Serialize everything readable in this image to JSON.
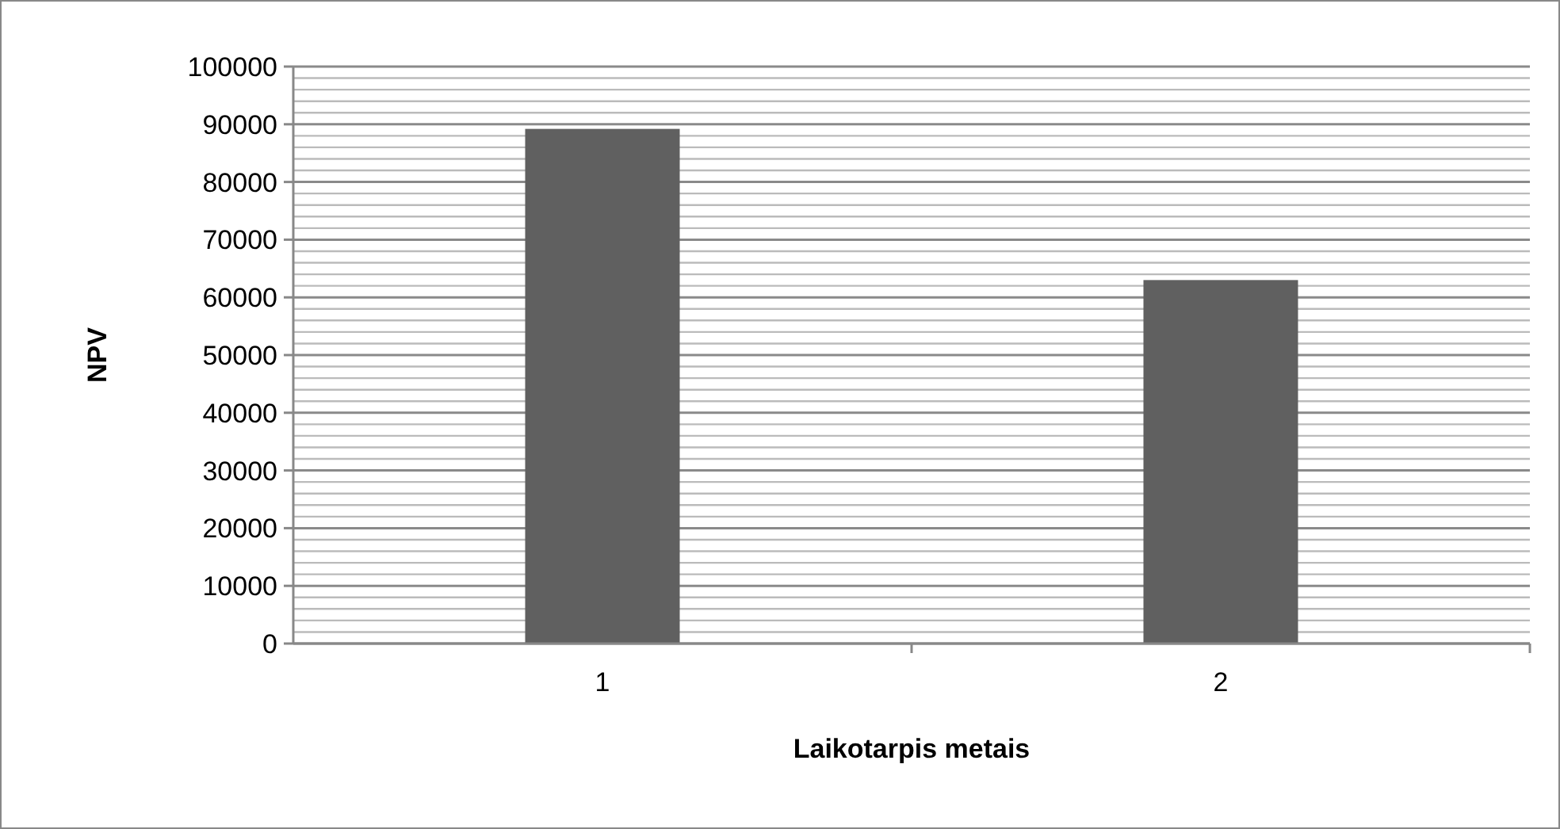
{
  "chart_data": {
    "type": "bar",
    "xlabel": "Laikotarpis metais",
    "ylabel": "NPV",
    "categories": [
      "1",
      "2"
    ],
    "values": [
      89200,
      63000
    ],
    "color": "#606060",
    "ylim": [
      0,
      100000
    ],
    "yticks": [
      0,
      {
        "value": 2000,
        "label": null
      },
      {
        "value": 4000,
        "label": null
      },
      {
        "value": 6000,
        "label": null
      },
      {
        "value": 8000,
        "label": null
      },
      10000,
      {
        "value": 12000,
        "label": null
      },
      {
        "value": 14000,
        "label": null
      },
      {
        "value": 16000,
        "label": null
      },
      {
        "value": 18000,
        "label": null
      },
      20000,
      {
        "value": 22000,
        "label": null
      },
      {
        "value": 24000,
        "label": null
      },
      {
        "value": 26000,
        "label": null
      },
      {
        "value": 28000,
        "label": null
      },
      30000,
      {
        "value": 32000,
        "label": null
      },
      {
        "value": 34000,
        "label": null
      },
      {
        "value": 36000,
        "label": null
      },
      {
        "value": 38000,
        "label": null
      },
      40000,
      {
        "value": 42000,
        "label": null
      },
      {
        "value": 44000,
        "label": null
      },
      {
        "value": 46000,
        "label": null
      },
      {
        "value": 48000,
        "label": null
      },
      50000,
      {
        "value": 52000,
        "label": null
      },
      {
        "value": 54000,
        "label": null
      },
      {
        "value": 56000,
        "label": null
      },
      {
        "value": 58000,
        "label": null
      },
      60000,
      {
        "value": 62000,
        "label": null
      },
      {
        "value": 64000,
        "label": null
      },
      {
        "value": 66000,
        "label": null
      },
      {
        "value": 68000,
        "label": null
      },
      70000,
      {
        "value": 72000,
        "label": null
      },
      {
        "value": 74000,
        "label": null
      },
      {
        "value": 76000,
        "label": null
      },
      {
        "value": 78000,
        "label": null
      },
      80000,
      {
        "value": 82000,
        "label": null
      },
      {
        "value": 84000,
        "label": null
      },
      {
        "value": 86000,
        "label": null
      },
      {
        "value": 88000,
        "label": null
      },
      90000,
      {
        "value": 92000,
        "label": null
      },
      {
        "value": 94000,
        "label": null
      },
      {
        "value": 96000,
        "label": null
      },
      {
        "value": 98000,
        "label": null
      },
      100000
    ],
    "grid": "y"
  }
}
